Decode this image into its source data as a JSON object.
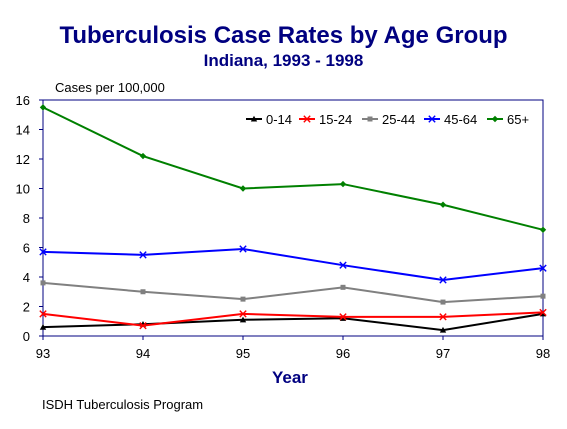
{
  "chart_data": {
    "type": "line",
    "title": "Tuberculosis Case Rates by Age Group",
    "subtitle": "Indiana, 1993 - 1998",
    "ylabel": "Cases per 100,000",
    "xlabel": "Year",
    "x": [
      "93",
      "94",
      "95",
      "96",
      "97",
      "98"
    ],
    "ylim": [
      0,
      16
    ],
    "yticks": [
      "0",
      "2",
      "4",
      "6",
      "8",
      "10",
      "12",
      "14",
      "16"
    ],
    "legend_position": "top-right",
    "series": [
      {
        "name": "0-14",
        "color": "#000000",
        "marker": "triangle",
        "values": [
          0.6,
          0.8,
          1.1,
          1.2,
          0.4,
          1.5
        ]
      },
      {
        "name": "15-24",
        "color": "#ff0000",
        "marker": "x",
        "values": [
          1.5,
          0.7,
          1.5,
          1.3,
          1.3,
          1.6
        ]
      },
      {
        "name": "25-44",
        "color": "#808080",
        "marker": "square",
        "values": [
          3.6,
          3.0,
          2.5,
          3.3,
          2.3,
          2.7
        ]
      },
      {
        "name": "45-64",
        "color": "#0000ff",
        "marker": "x",
        "values": [
          5.7,
          5.5,
          5.9,
          4.8,
          3.8,
          4.6
        ]
      },
      {
        "name": "65+",
        "color": "#008000",
        "marker": "diamond",
        "values": [
          15.5,
          12.2,
          10.0,
          10.3,
          8.9,
          7.2
        ]
      }
    ]
  },
  "footer": {
    "source": "ISDH Tuberculosis Program"
  }
}
